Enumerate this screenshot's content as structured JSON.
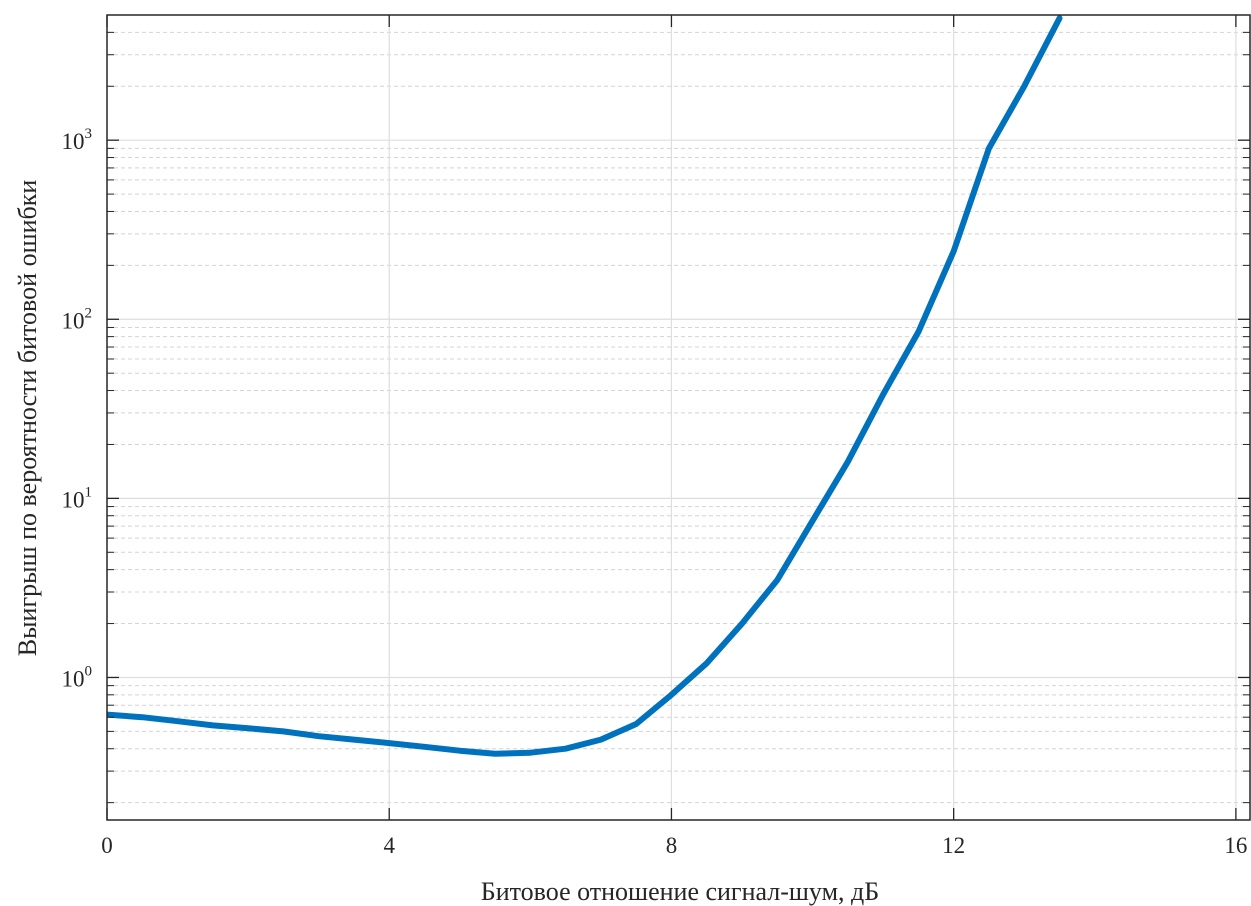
{
  "chart_data": {
    "type": "line",
    "title": "",
    "xlabel": "Битовое отношение сигнал-шум, дБ",
    "ylabel": "Выигрыш по вероятности битовой ошибки",
    "xlim": [
      0,
      16.2
    ],
    "ylim": [
      0.16,
      5000
    ],
    "yscale": "log",
    "grid": true,
    "x_ticks": [
      0,
      4,
      8,
      12,
      16
    ],
    "x_tick_labels": [
      "0",
      "4",
      "8",
      "12",
      "16"
    ],
    "y_ticks": [
      1,
      10,
      100,
      1000
    ],
    "y_tick_labels": [
      {
        "base": "10",
        "exp": "0"
      },
      {
        "base": "10",
        "exp": "1"
      },
      {
        "base": "10",
        "exp": "2"
      },
      {
        "base": "10",
        "exp": "3"
      }
    ],
    "series": [
      {
        "color": "#0072BD",
        "x": [
          0,
          0.5,
          1,
          1.5,
          2,
          2.5,
          3,
          3.5,
          4,
          4.5,
          5,
          5.5,
          6,
          6.5,
          7,
          7.5,
          8,
          8.5,
          9,
          9.5,
          10,
          10.5,
          11,
          11.5,
          12,
          12.5,
          13,
          13.5
        ],
        "y": [
          0.62,
          0.6,
          0.57,
          0.54,
          0.52,
          0.5,
          0.47,
          0.45,
          0.43,
          0.41,
          0.39,
          0.375,
          0.38,
          0.4,
          0.45,
          0.55,
          0.8,
          1.2,
          2.0,
          3.5,
          7.5,
          16,
          38,
          85,
          240,
          900,
          2000,
          4800
        ]
      }
    ]
  }
}
